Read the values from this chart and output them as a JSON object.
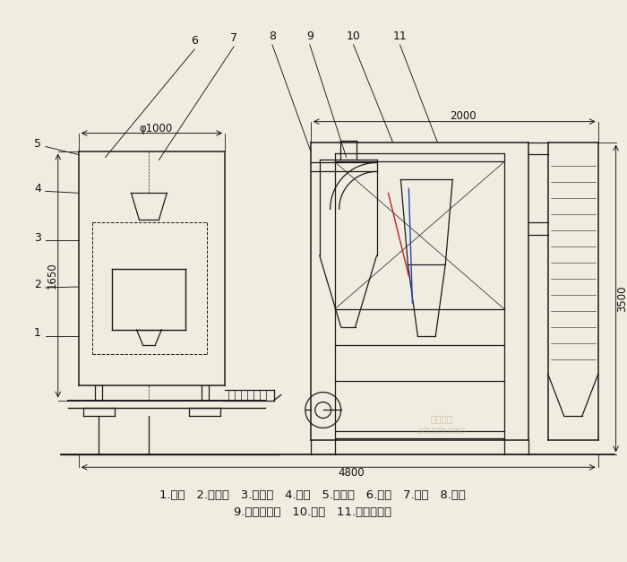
{
  "background_color": "#f0ece0",
  "line_color": "#1a1a1a",
  "label_line1": "1.底座   2.回风道   3.激振器   4.筛网   5.进料斗   6.风机   7.绞龙   8.料仓",
  "label_line2": "9.旋风分离器   10.支架   11.布袋除尘器",
  "dim_phi1000": "φ1000",
  "dim_1650": "1650",
  "dim_2000": "2000",
  "dim_3500": "3500",
  "dim_4800": "4800",
  "font_size_label": 9.5,
  "font_size_number": 9,
  "font_size_dim": 8.5
}
